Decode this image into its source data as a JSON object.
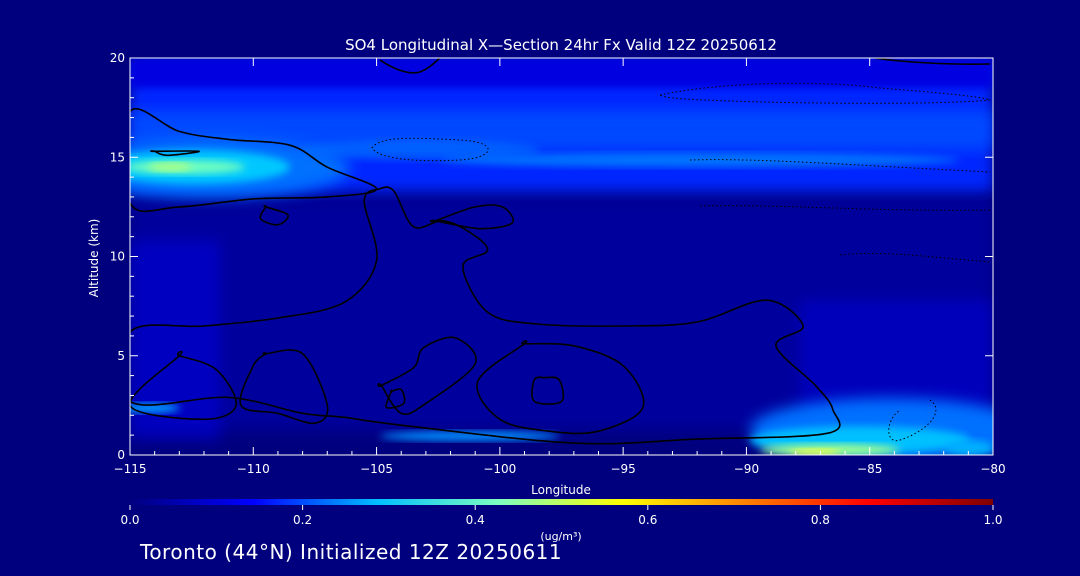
{
  "colors": {
    "background": "#00007f",
    "text": "#ffffff",
    "contour": "#000000"
  },
  "chart_data": {
    "type": "heatmap",
    "title": "SO4 Longitudinal X—Section 24hr  Fx Valid 12Z 20250612",
    "xlabel": "Longitude",
    "ylabel": "Altitude (km)",
    "xlim": [
      -115,
      -80
    ],
    "ylim": [
      0,
      20
    ],
    "x_ticks": [
      -115,
      -110,
      -105,
      -100,
      -95,
      -90,
      -85,
      -80
    ],
    "y_ticks": [
      0,
      5,
      10,
      15,
      20
    ],
    "x_tick_labels": [
      "−115",
      "−110",
      "−105",
      "−100",
      "−95",
      "−90",
      "−85",
      "−80"
    ],
    "y_tick_labels": [
      "0",
      "5",
      "10",
      "15",
      "20"
    ],
    "grid": false,
    "colorbar": {
      "min": 0.0,
      "max": 1.0,
      "ticks": [
        0.0,
        0.2,
        0.4,
        0.6,
        0.8,
        1.0
      ],
      "tick_labels": [
        "0.0",
        "0.2",
        "0.4",
        "0.6",
        "0.8",
        "1.0"
      ],
      "label": "(ug/m³)",
      "colormap": [
        "#00007f",
        "#0000ff",
        "#00bfff",
        "#7fffbf",
        "#ffff00",
        "#ff7f00",
        "#ff0000",
        "#7f0000"
      ]
    },
    "features": [
      {
        "name": "upper layer",
        "x_range": [
          -115,
          -80
        ],
        "y_range": [
          12.5,
          19
        ],
        "peak_value": 0.3
      },
      {
        "name": "west tropopause maximum",
        "x": -113,
        "y": 14.6,
        "value": 0.5
      },
      {
        "name": "surface layer east",
        "x_range": [
          -92,
          -80
        ],
        "y_range": [
          0,
          2.5
        ],
        "peak_value": 0.5
      }
    ],
    "contours": [
      {
        "level": "closed",
        "points": [
          [
            -115,
            17.3
          ],
          [
            -113,
            16.3
          ],
          [
            -111,
            15.9
          ],
          [
            -108.5,
            15.6
          ],
          [
            -107,
            14.5
          ],
          [
            -105,
            13.4
          ],
          [
            -107,
            13.0
          ],
          [
            -110,
            12.9
          ],
          [
            -113,
            12.5
          ],
          [
            -115,
            12.7
          ]
        ]
      },
      {
        "level": "closed",
        "points": [
          [
            -114,
            15.3
          ],
          [
            -112.2,
            15.3
          ],
          [
            -113.5,
            15.1
          ],
          [
            -114,
            15.3
          ]
        ]
      },
      {
        "level": "closed",
        "points": [
          [
            -109.5,
            12.5
          ],
          [
            -108.6,
            12.1
          ],
          [
            -109,
            11.6
          ],
          [
            -109.7,
            11.9
          ],
          [
            -109.5,
            12.5
          ]
        ]
      },
      {
        "level": "closed",
        "points": [
          [
            -115,
            6.2
          ],
          [
            -112,
            6.5
          ],
          [
            -109,
            6.9
          ],
          [
            -106.3,
            7.7
          ],
          [
            -105,
            9.8
          ],
          [
            -105.5,
            12.8
          ],
          [
            -104.9,
            13.4
          ],
          [
            -104.3,
            13.3
          ],
          [
            -103.5,
            11.5
          ],
          [
            -102.3,
            11.8
          ],
          [
            -101.2,
            11.2
          ],
          [
            -100.5,
            10.3
          ],
          [
            -101.5,
            9.5
          ],
          [
            -100.5,
            7.2
          ],
          [
            -98.5,
            6.6
          ],
          [
            -95,
            6.5
          ],
          [
            -92,
            6.7
          ],
          [
            -89.2,
            7.8
          ],
          [
            -87.7,
            6.5
          ],
          [
            -88.8,
            5.5
          ],
          [
            -87.2,
            3.5
          ],
          [
            -86.5,
            2.3
          ],
          [
            -86.7,
            1.1
          ],
          [
            -92,
            0.8
          ],
          [
            -97,
            0.6
          ],
          [
            -104,
            1.5
          ],
          [
            -106.3,
            1.9
          ],
          [
            -108,
            2.1
          ],
          [
            -111,
            2.9
          ],
          [
            -115,
            2.7
          ]
        ]
      },
      {
        "level": "closed",
        "points": [
          [
            -102.6,
            11.8
          ],
          [
            -101,
            12.5
          ],
          [
            -99.9,
            12.5
          ],
          [
            -99.5,
            11.7
          ],
          [
            -100.8,
            11.4
          ],
          [
            -102.6,
            11.8
          ]
        ]
      },
      {
        "level": "closed",
        "points": [
          [
            -113,
            5
          ],
          [
            -111.5,
            4.3
          ],
          [
            -110.7,
            2.5
          ],
          [
            -112,
            1.8
          ],
          [
            -115,
            2.5
          ],
          [
            -113,
            5
          ]
        ]
      },
      {
        "level": "closed",
        "points": [
          [
            -109.5,
            5.1
          ],
          [
            -108,
            5.1
          ],
          [
            -107,
            2.5
          ],
          [
            -107.5,
            1.6
          ],
          [
            -109,
            2.1
          ],
          [
            -110.5,
            2.5
          ],
          [
            -110,
            4.5
          ],
          [
            -109.5,
            5.1
          ]
        ]
      },
      {
        "level": "closed",
        "points": [
          [
            -104.8,
            3.5
          ],
          [
            -103.5,
            4.4
          ],
          [
            -103.1,
            5.4
          ],
          [
            -101.8,
            5.9
          ],
          [
            -101,
            4.6
          ],
          [
            -103,
            2.6
          ],
          [
            -104,
            2.1
          ],
          [
            -104.8,
            3.5
          ]
        ]
      },
      {
        "level": "closed",
        "points": [
          [
            -99,
            5.6
          ],
          [
            -97,
            5.5
          ],
          [
            -95,
            4.5
          ],
          [
            -94.2,
            2.4
          ],
          [
            -96,
            1.2
          ],
          [
            -98,
            1.2
          ],
          [
            -100,
            1.8
          ],
          [
            -100.9,
            3.7
          ],
          [
            -99,
            5.6
          ]
        ]
      },
      {
        "level": "closed",
        "points": [
          [
            -98.2,
            3.9
          ],
          [
            -97.6,
            3.8
          ],
          [
            -97.5,
            2.7
          ],
          [
            -98.6,
            2.7
          ],
          [
            -98.6,
            3.8
          ],
          [
            -98.2,
            3.9
          ]
        ]
      },
      {
        "level": "closed",
        "points": [
          [
            -104.4,
            3.2
          ],
          [
            -104,
            3.3
          ],
          [
            -103.9,
            2.6
          ],
          [
            -104.6,
            2.4
          ],
          [
            -104.4,
            3.2
          ]
        ]
      }
    ]
  },
  "footer": {
    "text": "Toronto (44°N) Initialized 12Z 20250611"
  }
}
